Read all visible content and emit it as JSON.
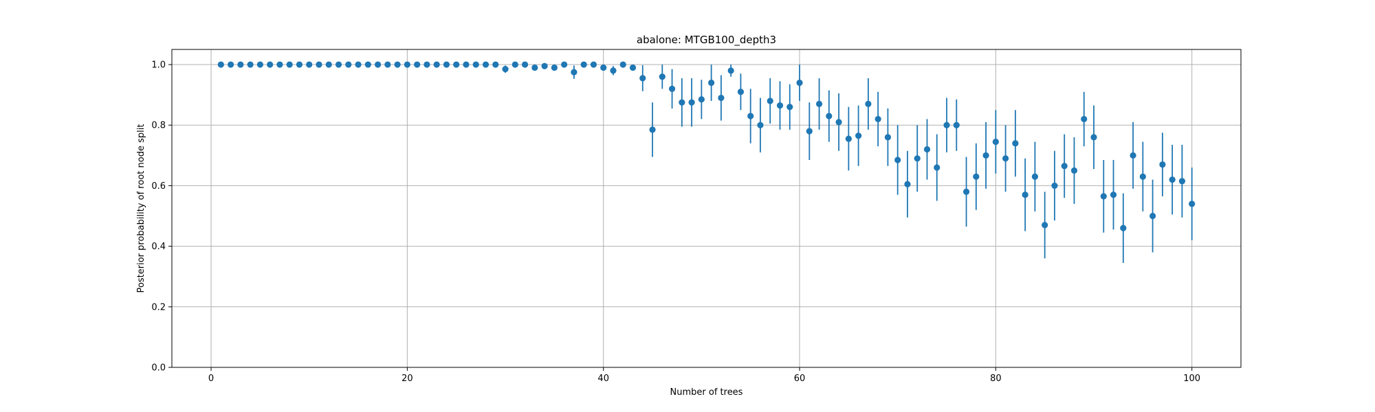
{
  "chart_data": {
    "type": "scatter",
    "title": "abalone: MTGB100_depth3",
    "xlabel": "Number of trees",
    "ylabel": "Posterior probability of root node split",
    "xlim": [
      -4,
      105
    ],
    "ylim": [
      0.0,
      1.05
    ],
    "xticks": [
      0,
      20,
      40,
      60,
      80,
      100
    ],
    "yticks": [
      0.0,
      0.2,
      0.4,
      0.6,
      0.8,
      1.0
    ],
    "xtick_labels": [
      "0",
      "20",
      "40",
      "60",
      "80",
      "100"
    ],
    "ytick_labels": [
      "0.0",
      "0.2",
      "0.4",
      "0.6",
      "0.8",
      "1.0"
    ],
    "grid": true,
    "marker_color": "#1f77b4",
    "series": [
      {
        "x": [
          1,
          2,
          3,
          4,
          5,
          6,
          7,
          8,
          9,
          10,
          11,
          12,
          13,
          14,
          15,
          16,
          17,
          18,
          19,
          20,
          21,
          22,
          23,
          24,
          25,
          26,
          27,
          28,
          29,
          30,
          31,
          32,
          33,
          34,
          35,
          36,
          37,
          38,
          39,
          40,
          41,
          42,
          43,
          44,
          45,
          46,
          47,
          48,
          49,
          50,
          51,
          52,
          53,
          54,
          55,
          56,
          57,
          58,
          59,
          60,
          61,
          62,
          63,
          64,
          65,
          66,
          67,
          68,
          69,
          70,
          71,
          72,
          73,
          74,
          75,
          76,
          77,
          78,
          79,
          80,
          81,
          82,
          83,
          84,
          85,
          86,
          87,
          88,
          89,
          90,
          91,
          92,
          93,
          94,
          95,
          96,
          97,
          98,
          99,
          100
        ],
        "y": [
          1.0,
          1.0,
          1.0,
          1.0,
          1.0,
          1.0,
          1.0,
          1.0,
          1.0,
          1.0,
          1.0,
          1.0,
          1.0,
          1.0,
          1.0,
          1.0,
          1.0,
          1.0,
          1.0,
          1.0,
          1.0,
          1.0,
          1.0,
          1.0,
          1.0,
          1.0,
          1.0,
          1.0,
          1.0,
          0.985,
          1.0,
          1.0,
          0.99,
          0.995,
          0.99,
          1.0,
          0.975,
          1.0,
          1.0,
          0.99,
          0.98,
          1.0,
          0.99,
          0.955,
          0.785,
          0.96,
          0.92,
          0.875,
          0.875,
          0.885,
          0.94,
          0.89,
          0.98,
          0.91,
          0.83,
          0.8,
          0.88,
          0.865,
          0.86,
          0.94,
          0.78,
          0.87,
          0.83,
          0.81,
          0.755,
          0.765,
          0.87,
          0.82,
          0.76,
          0.685,
          0.605,
          0.69,
          0.72,
          0.66,
          0.8,
          0.8,
          0.58,
          0.63,
          0.7,
          0.745,
          0.69,
          0.74,
          0.57,
          0.63,
          0.47,
          0.6,
          0.665,
          0.65,
          0.82,
          0.76,
          0.565,
          0.57,
          0.46,
          0.7,
          0.63,
          0.5,
          0.67,
          0.62,
          0.615,
          0.54
        ],
        "yerr": [
          0,
          0,
          0,
          0,
          0,
          0,
          0,
          0,
          0,
          0,
          0,
          0,
          0,
          0,
          0,
          0,
          0,
          0,
          0,
          0,
          0,
          0,
          0,
          0,
          0,
          0,
          0,
          0,
          0,
          0.012,
          0,
          0,
          0.01,
          0.006,
          0.01,
          0,
          0.022,
          0,
          0,
          0.01,
          0.015,
          0,
          0.01,
          0.043,
          0.09,
          0.04,
          0.065,
          0.08,
          0.08,
          0.065,
          0.06,
          0.075,
          0.02,
          0.06,
          0.09,
          0.09,
          0.075,
          0.08,
          0.075,
          0.06,
          0.095,
          0.085,
          0.085,
          0.095,
          0.105,
          0.1,
          0.085,
          0.09,
          0.095,
          0.115,
          0.11,
          0.11,
          0.1,
          0.11,
          0.09,
          0.085,
          0.115,
          0.11,
          0.11,
          0.105,
          0.11,
          0.11,
          0.12,
          0.115,
          0.11,
          0.115,
          0.105,
          0.11,
          0.09,
          0.105,
          0.12,
          0.115,
          0.115,
          0.11,
          0.115,
          0.12,
          0.105,
          0.115,
          0.12,
          0.12
        ]
      }
    ]
  }
}
